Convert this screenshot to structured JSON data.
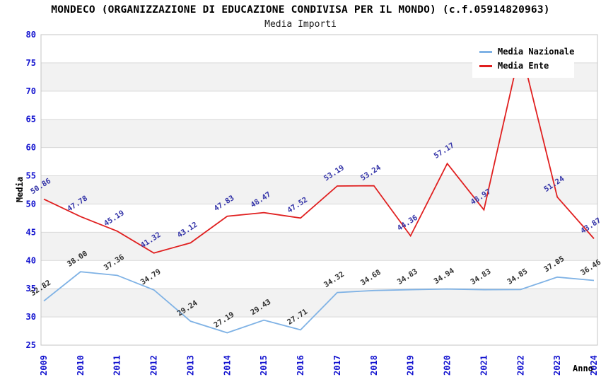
{
  "chart_data": {
    "type": "line",
    "title": "MONDECO (ORGANIZZAZIONE DI EDUCAZIONE CONDIVISA PER IL MONDO) (c.f.05914820963)",
    "subtitle": "Media Importi",
    "xlabel": "Anno",
    "ylabel": "Media",
    "ylim": [
      25,
      80
    ],
    "ytick_step": 5,
    "grid": "horizontal-bands-alternating",
    "legend_position": "top-right",
    "categories": [
      "2009",
      "2010",
      "2011",
      "2012",
      "2013",
      "2014",
      "2015",
      "2016",
      "2017",
      "2018",
      "2019",
      "2020",
      "2021",
      "2022",
      "2023",
      "2024"
    ],
    "series": [
      {
        "name": "Media Nazionale",
        "color": "#7fb2e5",
        "label_color": "#303030",
        "values": [
          32.82,
          38.0,
          37.36,
          34.79,
          29.24,
          27.19,
          29.43,
          27.71,
          34.32,
          34.68,
          34.83,
          34.94,
          34.83,
          34.85,
          37.05,
          36.46
        ]
      },
      {
        "name": "Media Ente",
        "color": "#e01f1f",
        "label_color": "#3434a8",
        "values": [
          50.86,
          47.78,
          45.19,
          41.32,
          43.12,
          47.83,
          48.47,
          47.52,
          53.19,
          53.24,
          44.36,
          57.17,
          48.97,
          77.7,
          51.24,
          43.87
        ]
      }
    ],
    "colors": {
      "tick": "#1212cf",
      "band": "#f2f2f2",
      "gridline": "#d9d9d9",
      "border": "#c4c4c4",
      "background": "#ffffff"
    }
  }
}
